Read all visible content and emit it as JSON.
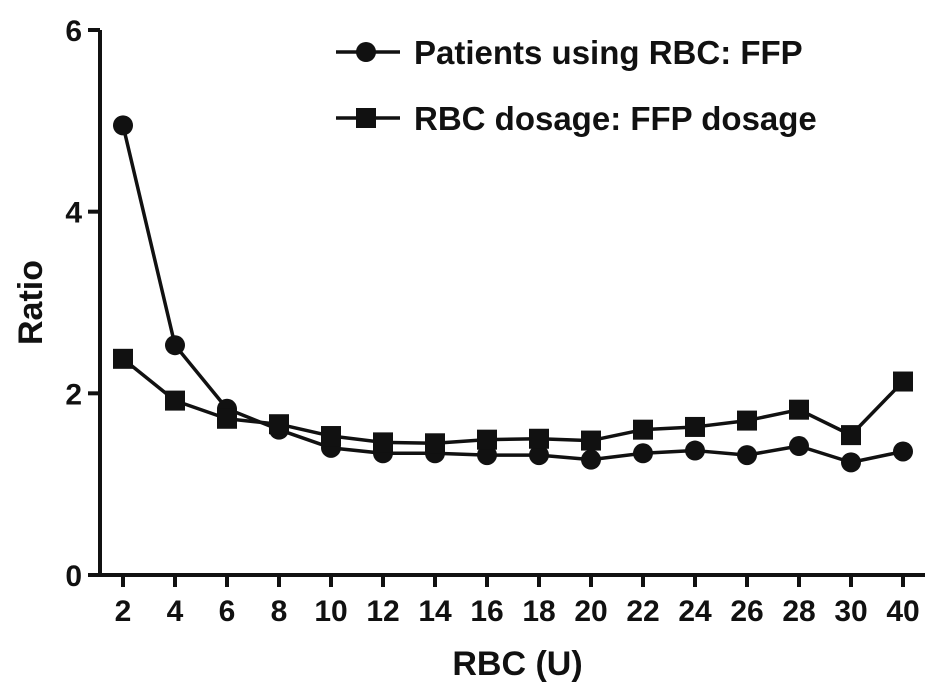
{
  "chart_data": {
    "type": "line",
    "title": "",
    "xlabel": "RBC (U)",
    "ylabel": "Ratio",
    "categories": [
      "2",
      "4",
      "6",
      "8",
      "10",
      "12",
      "14",
      "16",
      "18",
      "20",
      "22",
      "24",
      "26",
      "28",
      "30",
      "40"
    ],
    "ylim": [
      0,
      6
    ],
    "yticks": [
      "0",
      "2",
      "4",
      "6"
    ],
    "grid": false,
    "legend_position": "top-right",
    "series": [
      {
        "name": "Patients using RBC: FFP",
        "marker": "circle",
        "values": [
          4.95,
          2.53,
          1.83,
          1.6,
          1.4,
          1.34,
          1.34,
          1.32,
          1.32,
          1.27,
          1.34,
          1.37,
          1.32,
          1.42,
          1.24,
          1.36
        ]
      },
      {
        "name": "RBC dosage: FFP dosage",
        "marker": "square",
        "values": [
          2.38,
          1.92,
          1.72,
          1.66,
          1.53,
          1.46,
          1.45,
          1.49,
          1.5,
          1.48,
          1.6,
          1.63,
          1.7,
          1.82,
          1.54,
          2.13
        ]
      }
    ]
  }
}
